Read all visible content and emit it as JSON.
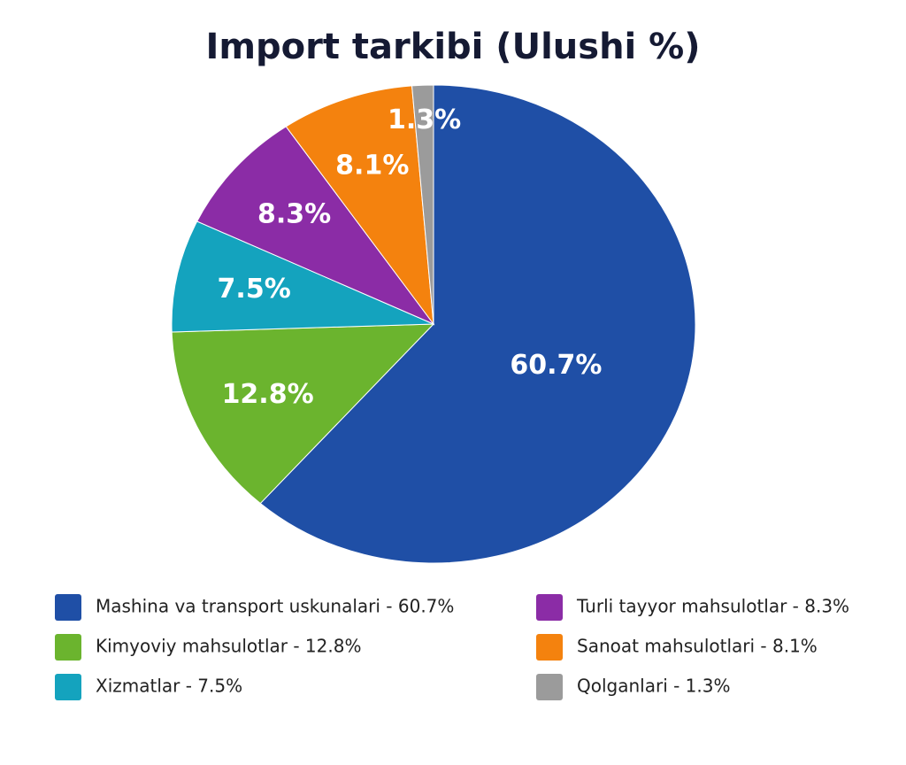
{
  "chart_data": {
    "type": "pie",
    "title": "Import tarkibi (Ulushi %)",
    "categories": [
      "Mashina va transport uskunalari - 60.7%",
      "Kimyoviy mahsulotlar - 12.8%",
      "Xizmatlar - 7.5%",
      "Turli tayyor mahsulotlar - 8.3%",
      "Sanoat mahsulotlari - 8.1%",
      "Qolganlari - 1.3%"
    ],
    "values": [
      60.7,
      12.8,
      7.5,
      8.3,
      8.1,
      1.3
    ],
    "value_labels": [
      "60.7%",
      "12.8%",
      "7.5%",
      "8.3%",
      "8.1%",
      "1.3%"
    ],
    "colors": [
      "#1f4fa6",
      "#6bb42e",
      "#14a3be",
      "#8b2ca6",
      "#f4820e",
      "#9b9b9b"
    ]
  }
}
